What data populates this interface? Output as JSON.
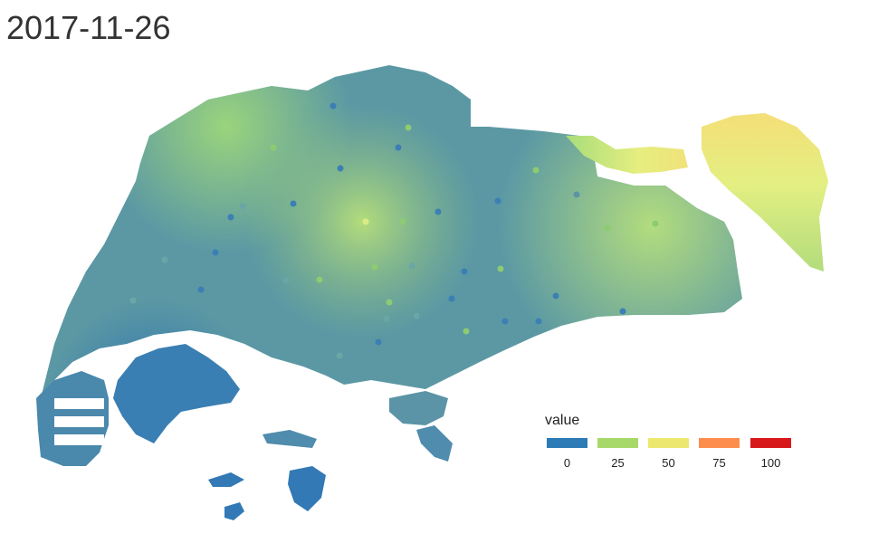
{
  "title": "2017-11-26",
  "legend": {
    "title": "value",
    "breaks": [
      {
        "label": "0",
        "value": 0,
        "color": "#2c7bb6"
      },
      {
        "label": "25",
        "value": 25,
        "color": "#a6d96a"
      },
      {
        "label": "50",
        "value": 50,
        "color": "#ece76f"
      },
      {
        "label": "75",
        "value": 75,
        "color": "#fd8d4c"
      },
      {
        "label": "100",
        "value": 100,
        "color": "#d7191c"
      }
    ]
  }
}
